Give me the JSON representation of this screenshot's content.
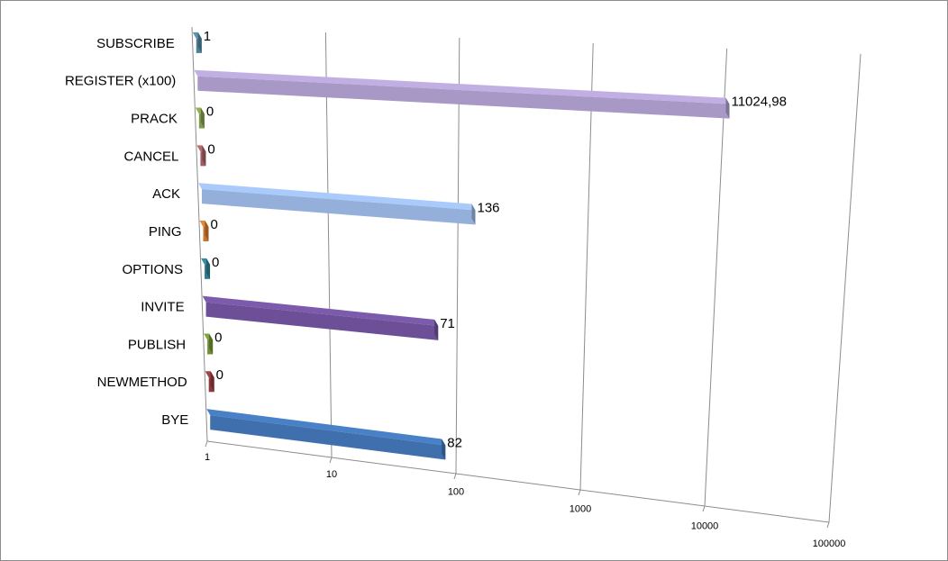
{
  "chart_data": {
    "type": "bar3d",
    "orientation": "horizontal",
    "log_x": true,
    "categories": [
      "SUBSCRIBE",
      "REGISTER (x100)",
      "PRACK",
      "CANCEL",
      "ACK",
      "PING",
      "OPTIONS",
      "INVITE",
      "PUBLISH",
      "NEWMETHOD",
      "BYE"
    ],
    "values": [
      1,
      11024.98,
      0,
      0,
      136,
      0,
      0,
      71,
      0,
      0,
      82
    ],
    "value_labels": [
      "1",
      "11024,98",
      "0",
      "0",
      "136",
      "0",
      "0",
      "71",
      "0",
      "0",
      "82"
    ],
    "colors": [
      "#4f8196",
      "#a898c6",
      "#7f9a4a",
      "#a05c62",
      "#94b0da",
      "#c8742e",
      "#2d7a8a",
      "#6c4f96",
      "#6f8e34",
      "#8d3a3e",
      "#3f70ad"
    ],
    "xlim": [
      1,
      100000
    ],
    "xticks": [
      1,
      10,
      100,
      1000,
      10000,
      100000
    ],
    "grid": true
  }
}
